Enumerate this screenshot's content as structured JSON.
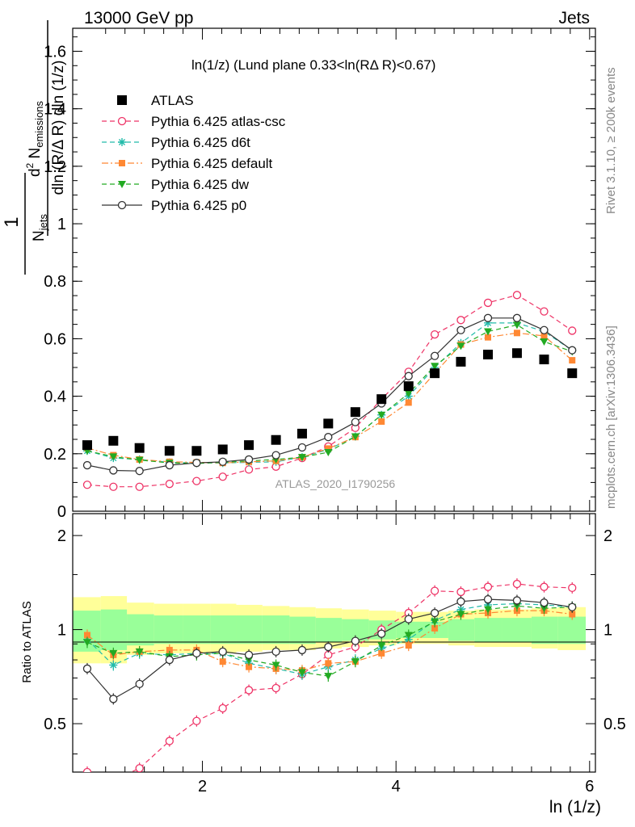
{
  "header": {
    "left": "13000 GeV pp",
    "right": "Jets"
  },
  "side_labels": {
    "rivet": "Rivet 3.1.10, ≥ 200k events",
    "mcplots": "mcplots.cern.ch [arXiv:1306.3436]"
  },
  "watermark": "ATLAS_2020_I1790256",
  "legend_title": "ln(1/z) (Lund plane 0.33<ln(RΔ R)<0.67)",
  "colors": {
    "data": "#000000",
    "atlas_csc": "#ee3366",
    "d6t": "#22bbaa",
    "default": "#ff8833",
    "dw": "#22aa22",
    "p0": "#333333",
    "band_inner": "#99ff99",
    "band_outer": "#ffff99"
  },
  "chart_data": [
    {
      "type": "scatter",
      "panel": "main",
      "title": "ln(1/z) (Lund plane 0.33<ln(RΔ R)<0.67)",
      "xlabel": "ln (1/z)",
      "ylabel": "1/N_jets d²N_emissions / dln(R/ΔR) dln(1/z)",
      "xlim": [
        0.66,
        6.06
      ],
      "ylim": [
        0,
        1.68
      ],
      "yticks": [
        0,
        0.2,
        0.4,
        0.6,
        0.8,
        1,
        1.2,
        1.4,
        1.6
      ],
      "ytick_labels": [
        "0",
        "0.2",
        "0.4",
        "0.6",
        "0.8",
        "1",
        "1.2",
        "1.4",
        "1.6"
      ],
      "legend_position": "top-left",
      "x": [
        0.81,
        1.08,
        1.35,
        1.66,
        1.94,
        2.21,
        2.48,
        2.76,
        3.03,
        3.3,
        3.58,
        3.85,
        4.13,
        4.4,
        4.67,
        4.95,
        5.25,
        5.53,
        5.82
      ],
      "series": [
        {
          "name": "ATLAS",
          "key": "data",
          "marker": "square",
          "line": "none",
          "values": [
            0.23,
            0.245,
            0.22,
            0.21,
            0.21,
            0.215,
            0.23,
            0.248,
            0.27,
            0.305,
            0.345,
            0.39,
            0.435,
            0.48,
            0.52,
            0.545,
            0.55,
            0.528,
            0.48
          ]
        },
        {
          "name": "Pythia 6.425 atlas-csc",
          "key": "atlas_csc",
          "marker": "open-circle",
          "line": "dashed",
          "values": [
            0.092,
            0.085,
            0.085,
            0.095,
            0.105,
            0.12,
            0.145,
            0.155,
            0.185,
            0.225,
            0.29,
            0.39,
            0.485,
            0.615,
            0.665,
            0.725,
            0.752,
            0.695,
            0.628
          ]
        },
        {
          "name": "Pythia 6.425 d6t",
          "key": "d6t",
          "marker": "star",
          "line": "dashed",
          "values": [
            0.21,
            0.185,
            0.18,
            0.17,
            0.168,
            0.168,
            0.17,
            0.172,
            0.188,
            0.215,
            0.26,
            0.335,
            0.4,
            0.5,
            0.585,
            0.655,
            0.655,
            0.625,
            0.56
          ]
        },
        {
          "name": "Pythia 6.425 default",
          "key": "default",
          "marker": "filled-square",
          "line": "dashdot",
          "values": [
            0.22,
            0.195,
            0.18,
            0.172,
            0.17,
            0.168,
            0.172,
            0.175,
            0.188,
            0.218,
            0.258,
            0.312,
            0.378,
            0.48,
            0.58,
            0.605,
            0.62,
            0.61,
            0.525
          ]
        },
        {
          "name": "Pythia 6.425 dw",
          "key": "dw",
          "marker": "down-triangle",
          "line": "dashed",
          "values": [
            0.21,
            0.19,
            0.178,
            0.168,
            0.166,
            0.17,
            0.175,
            0.18,
            0.188,
            0.205,
            0.26,
            0.335,
            0.41,
            0.505,
            0.575,
            0.625,
            0.648,
            0.59,
            0.555
          ]
        },
        {
          "name": "Pythia 6.425 p0",
          "key": "p0",
          "marker": "open-circle",
          "line": "solid",
          "values": [
            0.16,
            0.142,
            0.14,
            0.16,
            0.168,
            0.172,
            0.18,
            0.195,
            0.222,
            0.258,
            0.31,
            0.375,
            0.47,
            0.54,
            0.63,
            0.672,
            0.672,
            0.63,
            0.56
          ]
        }
      ]
    },
    {
      "type": "scatter",
      "panel": "ratio",
      "xlabel": "ln (1/z)",
      "ylabel": "Ratio to ATLAS",
      "xlim": [
        0.66,
        6.06
      ],
      "ylim": [
        0.35,
        2.35
      ],
      "yticks": [
        0.5,
        1,
        2
      ],
      "ytick_labels": [
        "0.5",
        "1",
        "2"
      ],
      "xticks": [
        2,
        4,
        6
      ],
      "xtick_labels": [
        "2",
        "4",
        "6"
      ],
      "x": [
        0.81,
        1.08,
        1.35,
        1.66,
        1.94,
        2.21,
        2.48,
        2.76,
        3.03,
        3.3,
        3.58,
        3.85,
        4.13,
        4.4,
        4.67,
        4.95,
        5.25,
        5.53,
        5.82
      ],
      "band_edges": [
        0.66,
        0.95,
        1.22,
        1.5,
        1.8,
        2.08,
        2.35,
        2.62,
        2.9,
        3.17,
        3.44,
        3.72,
        4.0,
        4.27,
        4.54,
        4.81,
        5.1,
        5.4,
        5.67,
        5.96
      ],
      "band_inner": [
        [
          0.85,
          1.15
        ],
        [
          0.86,
          1.16
        ],
        [
          0.89,
          1.12
        ],
        [
          0.9,
          1.11
        ],
        [
          0.9,
          1.11
        ],
        [
          0.9,
          1.11
        ],
        [
          0.9,
          1.11
        ],
        [
          0.9,
          1.11
        ],
        [
          0.9,
          1.1
        ],
        [
          0.91,
          1.09
        ],
        [
          0.92,
          1.08
        ],
        [
          0.93,
          1.07
        ],
        [
          0.94,
          1.06
        ],
        [
          0.94,
          1.06
        ],
        [
          0.92,
          1.08
        ],
        [
          0.91,
          1.09
        ],
        [
          0.91,
          1.09
        ],
        [
          0.9,
          1.1
        ],
        [
          0.9,
          1.1
        ]
      ],
      "band_outer": [
        [
          0.78,
          1.27
        ],
        [
          0.78,
          1.28
        ],
        [
          0.83,
          1.22
        ],
        [
          0.84,
          1.21
        ],
        [
          0.84,
          1.21
        ],
        [
          0.84,
          1.21
        ],
        [
          0.85,
          1.2
        ],
        [
          0.86,
          1.19
        ],
        [
          0.86,
          1.18
        ],
        [
          0.87,
          1.17
        ],
        [
          0.88,
          1.16
        ],
        [
          0.89,
          1.15
        ],
        [
          0.9,
          1.14
        ],
        [
          0.9,
          1.14
        ],
        [
          0.89,
          1.15
        ],
        [
          0.88,
          1.16
        ],
        [
          0.88,
          1.16
        ],
        [
          0.87,
          1.17
        ],
        [
          0.86,
          1.18
        ]
      ],
      "series": [
        {
          "name": "Pythia 6.425 atlas-csc",
          "key": "atlas_csc",
          "marker": "open-circle",
          "line": "dashed",
          "values": [
            0.35,
            0.33,
            0.36,
            0.44,
            0.51,
            0.56,
            0.64,
            0.65,
            0.72,
            0.83,
            0.88,
            1.0,
            1.13,
            1.33,
            1.32,
            1.37,
            1.4,
            1.37,
            1.36
          ]
        },
        {
          "name": "Pythia 6.425 d6t",
          "key": "d6t",
          "marker": "star",
          "line": "dashed",
          "values": [
            0.93,
            0.77,
            0.84,
            0.83,
            0.84,
            0.84,
            0.78,
            0.75,
            0.72,
            0.76,
            0.8,
            0.87,
            0.93,
            1.07,
            1.16,
            1.2,
            1.21,
            1.2,
            1.18
          ]
        },
        {
          "name": "Pythia 6.425 default",
          "key": "default",
          "marker": "filled-square",
          "line": "dashdot",
          "values": [
            0.96,
            0.83,
            0.85,
            0.86,
            0.86,
            0.79,
            0.76,
            0.75,
            0.74,
            0.78,
            0.79,
            0.84,
            0.89,
            1.01,
            1.12,
            1.13,
            1.15,
            1.15,
            1.12
          ]
        },
        {
          "name": "Pythia 6.425 dw",
          "key": "dw",
          "marker": "down-triangle",
          "line": "dashed",
          "values": [
            0.91,
            0.84,
            0.85,
            0.82,
            0.83,
            0.84,
            0.8,
            0.77,
            0.73,
            0.71,
            0.79,
            0.89,
            0.96,
            1.06,
            1.12,
            1.16,
            1.19,
            1.17,
            1.18
          ]
        },
        {
          "name": "Pythia 6.425 p0",
          "key": "p0",
          "marker": "open-circle",
          "line": "solid",
          "values": [
            0.75,
            0.6,
            0.67,
            0.8,
            0.84,
            0.85,
            0.83,
            0.85,
            0.86,
            0.88,
            0.92,
            0.97,
            1.08,
            1.13,
            1.23,
            1.25,
            1.24,
            1.22,
            1.18
          ]
        }
      ]
    }
  ]
}
